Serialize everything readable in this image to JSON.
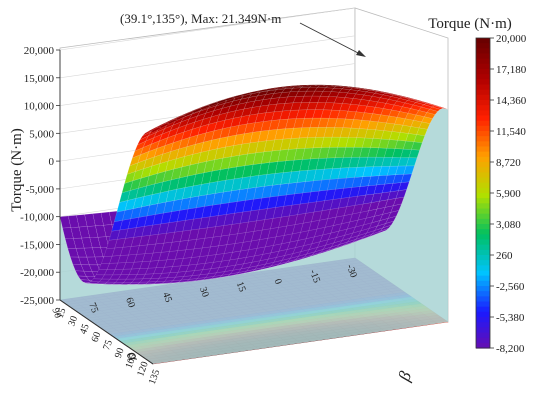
{
  "chart_data": {
    "type": "surface3d",
    "title": "",
    "zlabel": "Torque (N·m)",
    "xlabel": "α",
    "ylabel": "β",
    "x_ticks": [
      "-30",
      "-15",
      "0",
      "15",
      "30",
      "45",
      "60",
      "75",
      "90"
    ],
    "y_ticks": [
      "15",
      "30",
      "45",
      "60",
      "75",
      "90",
      "105",
      "120",
      "135"
    ],
    "z_ticks": [
      "20,000",
      "15,000",
      "10,000",
      "5,000",
      "0",
      "-5,000",
      "-10,000",
      "-15,000",
      "-20,000",
      "-25,000"
    ],
    "xlim": [
      -30,
      90
    ],
    "ylim": [
      15,
      135
    ],
    "zlim": [
      -25000,
      20000
    ],
    "colorbar": {
      "title": "Torque (N·m)",
      "ticks": [
        "20,000",
        "17,180",
        "14,360",
        "11,540",
        "8,720",
        "5,900",
        "3,080",
        "260",
        "-2,560",
        "-5,380",
        "-8,200"
      ],
      "range": [
        -8200,
        20000
      ],
      "colormap": [
        "#6a0dad",
        "#1a1aff",
        "#00c3ff",
        "#00c060",
        "#b0e000",
        "#ffa000",
        "#ff2000",
        "#b00000",
        "#6b0000"
      ]
    },
    "annotation": {
      "text": "(39.1°,135°), Max: 21.349N·m",
      "x": 39.1,
      "y": 135,
      "z": 21349
    },
    "grid": true,
    "projection_floor": true,
    "wall_color": "#a8d8d8"
  }
}
